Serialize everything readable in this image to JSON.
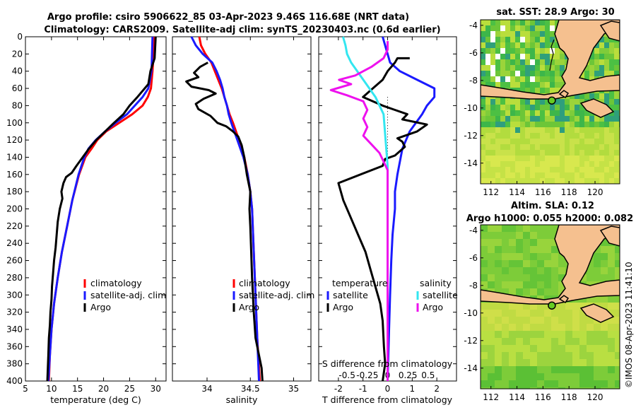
{
  "header": {
    "title_line1": "Argo profile: csiro 5906622_85 03-Apr-2023 9.46S 116.68E (NRT data)",
    "title_line2": "Climatology: CARS2009. Satellite-adj clim: synTS_20230403.nc (0.6d earlier)"
  },
  "sst_map": {
    "title": "sat. SST: 28.9 Argo: 30",
    "x_ticks": [
      "112",
      "114",
      "116",
      "118",
      "120"
    ],
    "y_ticks": [
      "-4",
      "-6",
      "-8",
      "-10",
      "-12",
      "-14"
    ]
  },
  "sla_map": {
    "title_line1": "Altim. SLA: 0.12",
    "title_line2": "Argo h1000: 0.055 h2000: 0.082",
    "x_ticks": [
      "112",
      "114",
      "116",
      "118",
      "120"
    ],
    "y_ticks": [
      "-4",
      "-6",
      "-8",
      "-10",
      "-12",
      "-14"
    ]
  },
  "side_text": "©IMOS 08-Apr-2023 11:41:10",
  "colors": {
    "climatology": "#ff0000",
    "satellite": "#1a1aff",
    "argo": "#000000",
    "salinity_sat": "#33e6f0",
    "salinity_argo": "#ee11ee",
    "land": "#f5c08f",
    "sea_green": "#55cc22"
  },
  "chart_data": [
    {
      "type": "line",
      "name": "temperature",
      "xlabel": "temperature (deg C)",
      "ylabel": "",
      "xlim": [
        5,
        32
      ],
      "ylim": [
        400,
        0
      ],
      "x_ticks": [
        5,
        10,
        15,
        20,
        25,
        30
      ],
      "y_ticks": [
        0,
        20,
        40,
        60,
        80,
        100,
        120,
        140,
        160,
        180,
        200,
        220,
        240,
        260,
        280,
        300,
        320,
        340,
        360,
        380,
        400
      ],
      "legend": [
        "climatology",
        "satellite-adj. clim",
        "Argo"
      ],
      "series": [
        {
          "name": "climatology",
          "points": [
            [
              29.7,
              0
            ],
            [
              29.6,
              20
            ],
            [
              29.4,
              40
            ],
            [
              29.1,
              60
            ],
            [
              28.5,
              70
            ],
            [
              27.5,
              80
            ],
            [
              25.5,
              90
            ],
            [
              23.0,
              100
            ],
            [
              20.5,
              110
            ],
            [
              18.8,
              120
            ],
            [
              17.7,
              130
            ],
            [
              16.5,
              140
            ],
            [
              15.3,
              160
            ],
            [
              14.0,
              190
            ],
            [
              13.0,
              220
            ],
            [
              12.0,
              250
            ],
            [
              11.2,
              280
            ],
            [
              10.5,
              310
            ],
            [
              10.0,
              340
            ],
            [
              9.7,
              370
            ],
            [
              9.5,
              400
            ]
          ]
        },
        {
          "name": "satellite-adj. clim",
          "points": [
            [
              29.4,
              0
            ],
            [
              29.3,
              20
            ],
            [
              29.2,
              40
            ],
            [
              28.6,
              60
            ],
            [
              27.5,
              70
            ],
            [
              26.0,
              80
            ],
            [
              24.5,
              90
            ],
            [
              22.3,
              100
            ],
            [
              20.3,
              110
            ],
            [
              18.5,
              120
            ],
            [
              17.1,
              130
            ],
            [
              16.3,
              140
            ],
            [
              15.2,
              160
            ],
            [
              14.0,
              190
            ],
            [
              13.0,
              220
            ],
            [
              12.0,
              250
            ],
            [
              11.2,
              280
            ],
            [
              10.5,
              310
            ],
            [
              10.0,
              340
            ],
            [
              9.7,
              370
            ],
            [
              9.4,
              400
            ]
          ]
        },
        {
          "name": "Argo",
          "points": [
            [
              30.0,
              0
            ],
            [
              29.8,
              25
            ],
            [
              29.0,
              40
            ],
            [
              28.6,
              55
            ],
            [
              26.5,
              70
            ],
            [
              25.0,
              80
            ],
            [
              23.8,
              90
            ],
            [
              22.0,
              100
            ],
            [
              20.3,
              110
            ],
            [
              18.6,
              120
            ],
            [
              17.2,
              130
            ],
            [
              16.0,
              140
            ],
            [
              14.8,
              150
            ],
            [
              13.9,
              158
            ],
            [
              12.8,
              163
            ],
            [
              12.3,
              170
            ],
            [
              11.9,
              180
            ],
            [
              12.1,
              188
            ],
            [
              11.6,
              200
            ],
            [
              11.2,
              215
            ],
            [
              11.0,
              230
            ],
            [
              10.8,
              245
            ],
            [
              10.5,
              260
            ],
            [
              10.3,
              275
            ],
            [
              10.1,
              290
            ],
            [
              10.0,
              305
            ],
            [
              9.8,
              320
            ],
            [
              9.7,
              335
            ],
            [
              9.5,
              350
            ],
            [
              9.4,
              370
            ],
            [
              9.3,
              385
            ],
            [
              9.2,
              400
            ]
          ]
        }
      ]
    },
    {
      "type": "line",
      "name": "salinity",
      "xlabel": "salinity",
      "ylabel": "",
      "xlim": [
        33.6,
        35.2
      ],
      "ylim": [
        400,
        0
      ],
      "x_ticks": [
        34,
        34.5,
        35
      ],
      "legend": [
        "climatology",
        "satellite-adj. clim",
        "Argo"
      ],
      "series": [
        {
          "name": "climatology",
          "points": [
            [
              33.91,
              0
            ],
            [
              33.93,
              10
            ],
            [
              33.98,
              20
            ],
            [
              34.05,
              30
            ],
            [
              34.09,
              40
            ],
            [
              34.13,
              50
            ],
            [
              34.17,
              60
            ],
            [
              34.2,
              70
            ],
            [
              34.23,
              80
            ],
            [
              34.26,
              90
            ],
            [
              34.3,
              100
            ],
            [
              34.37,
              120
            ],
            [
              34.43,
              140
            ],
            [
              34.47,
              160
            ],
            [
              34.5,
              180
            ],
            [
              34.52,
              200
            ],
            [
              34.54,
              250
            ],
            [
              34.56,
              300
            ],
            [
              34.58,
              350
            ],
            [
              34.61,
              400
            ]
          ]
        },
        {
          "name": "satellite-adj. clim",
          "points": [
            [
              33.82,
              0
            ],
            [
              33.87,
              10
            ],
            [
              33.95,
              20
            ],
            [
              34.06,
              30
            ],
            [
              34.11,
              40
            ],
            [
              34.15,
              50
            ],
            [
              34.18,
              60
            ],
            [
              34.2,
              70
            ],
            [
              34.23,
              80
            ],
            [
              34.25,
              90
            ],
            [
              34.28,
              100
            ],
            [
              34.35,
              120
            ],
            [
              34.42,
              140
            ],
            [
              34.47,
              160
            ],
            [
              34.5,
              180
            ],
            [
              34.52,
              200
            ],
            [
              34.54,
              250
            ],
            [
              34.56,
              300
            ],
            [
              34.58,
              350
            ],
            [
              34.6,
              400
            ]
          ]
        },
        {
          "name": "Argo",
          "points": [
            [
              34.01,
              30
            ],
            [
              33.92,
              35
            ],
            [
              33.85,
              42
            ],
            [
              33.9,
              47
            ],
            [
              33.76,
              52
            ],
            [
              33.82,
              58
            ],
            [
              34.02,
              62
            ],
            [
              34.1,
              66
            ],
            [
              33.96,
              72
            ],
            [
              33.87,
              78
            ],
            [
              33.9,
              84
            ],
            [
              34.04,
              92
            ],
            [
              34.12,
              100
            ],
            [
              34.22,
              104
            ],
            [
              34.3,
              110
            ],
            [
              34.36,
              116
            ],
            [
              34.4,
              126
            ],
            [
              34.43,
              140
            ],
            [
              34.46,
              160
            ],
            [
              34.5,
              180
            ],
            [
              34.49,
              200
            ],
            [
              34.5,
              220
            ],
            [
              34.51,
              250
            ],
            [
              34.52,
              280
            ],
            [
              34.54,
              320
            ],
            [
              34.56,
              350
            ],
            [
              34.6,
              370
            ],
            [
              34.63,
              385
            ],
            [
              34.64,
              400
            ]
          ]
        }
      ]
    },
    {
      "type": "line",
      "name": "differences",
      "xlabel": "T difference from climatology",
      "xlabel_top": "S difference from climatology",
      "xlim": [
        -2.8,
        2.8
      ],
      "xlim_salinity": [
        -0.85,
        0.85
      ],
      "ylim": [
        400,
        0
      ],
      "x_ticks": [
        -2,
        -1,
        0,
        1,
        2
      ],
      "x_ticks_salinity": [
        -0.5,
        -0.25,
        0,
        0.25,
        0.5
      ],
      "legend_temperature": {
        "header": "temperature",
        "entries": [
          "satellite",
          "Argo"
        ]
      },
      "legend_salinity": {
        "header": "salinity",
        "entries": [
          "satellite",
          "Argo"
        ]
      },
      "series": [
        {
          "name": "T satellite",
          "scale": "T",
          "points": [
            [
              -0.2,
              0
            ],
            [
              -0.1,
              10
            ],
            [
              0.1,
              30
            ],
            [
              0.5,
              40
            ],
            [
              1.2,
              50
            ],
            [
              1.9,
              60
            ],
            [
              1.9,
              70
            ],
            [
              1.6,
              80
            ],
            [
              1.4,
              90
            ],
            [
              0.9,
              110
            ],
            [
              0.6,
              130
            ],
            [
              0.5,
              145
            ],
            [
              0.4,
              160
            ],
            [
              0.3,
              180
            ],
            [
              0.3,
              200
            ],
            [
              0.2,
              230
            ],
            [
              0.15,
              260
            ],
            [
              0.1,
              300
            ],
            [
              0.05,
              350
            ],
            [
              0,
              400
            ]
          ]
        },
        {
          "name": "T Argo",
          "scale": "T",
          "points": [
            [
              0.9,
              25
            ],
            [
              0.4,
              25
            ],
            [
              0.3,
              30
            ],
            [
              0,
              40
            ],
            [
              -0.2,
              50
            ],
            [
              -0.6,
              60
            ],
            [
              -1.0,
              70
            ],
            [
              -0.2,
              80
            ],
            [
              0.3,
              85
            ],
            [
              0.8,
              90
            ],
            [
              0.6,
              96
            ],
            [
              1.6,
              102
            ],
            [
              1.2,
              110
            ],
            [
              0.4,
              118
            ],
            [
              0.6,
              122
            ],
            [
              0.7,
              128
            ],
            [
              0.3,
              138
            ],
            [
              -0.1,
              142
            ],
            [
              -0.2,
              150
            ],
            [
              -2.0,
              170
            ],
            [
              -1.8,
              190
            ],
            [
              -1.5,
              210
            ],
            [
              -1.2,
              230
            ],
            [
              -0.9,
              250
            ],
            [
              -0.7,
              270
            ],
            [
              -0.5,
              290
            ],
            [
              -0.3,
              310
            ],
            [
              -0.2,
              330
            ],
            [
              -0.15,
              360
            ],
            [
              -0.1,
              380
            ],
            [
              -0.2,
              400
            ]
          ]
        },
        {
          "name": "S satellite",
          "scale": "S",
          "points": [
            [
              -0.55,
              0
            ],
            [
              -0.52,
              10
            ],
            [
              -0.5,
              20
            ],
            [
              -0.45,
              30
            ],
            [
              -0.3,
              50
            ],
            [
              -0.15,
              70
            ],
            [
              -0.05,
              90
            ],
            [
              0,
              150
            ],
            [
              0,
              200
            ],
            [
              0,
              300
            ],
            [
              0,
              400
            ]
          ]
        },
        {
          "name": "S Argo",
          "scale": "S",
          "points": [
            [
              0,
              5
            ],
            [
              0,
              15
            ],
            [
              -0.05,
              25
            ],
            [
              -0.2,
              35
            ],
            [
              -0.4,
              45
            ],
            [
              -0.6,
              50
            ],
            [
              -0.45,
              55
            ],
            [
              -0.7,
              62
            ],
            [
              -0.5,
              68
            ],
            [
              -0.3,
              75
            ],
            [
              -0.25,
              85
            ],
            [
              -0.3,
              95
            ],
            [
              -0.25,
              105
            ],
            [
              -0.3,
              115
            ],
            [
              -0.2,
              125
            ],
            [
              -0.1,
              135
            ],
            [
              -0.05,
              145
            ],
            [
              0,
              155
            ],
            [
              0,
              200
            ],
            [
              0,
              300
            ],
            [
              0,
              400
            ]
          ]
        }
      ]
    },
    {
      "type": "heatmap",
      "name": "sat. SST map",
      "title": "sat. SST: 28.9 Argo: 30",
      "xlim": [
        111.2,
        121.9
      ],
      "ylim": [
        -15.5,
        -3.6
      ],
      "argo_position": [
        116.68,
        -9.46
      ]
    },
    {
      "type": "heatmap",
      "name": "Altim. SLA map",
      "title": "Altim. SLA: 0.12",
      "xlim": [
        111.2,
        121.9
      ],
      "ylim": [
        -15.5,
        -3.6
      ],
      "argo_position": [
        116.68,
        -9.46
      ]
    }
  ]
}
